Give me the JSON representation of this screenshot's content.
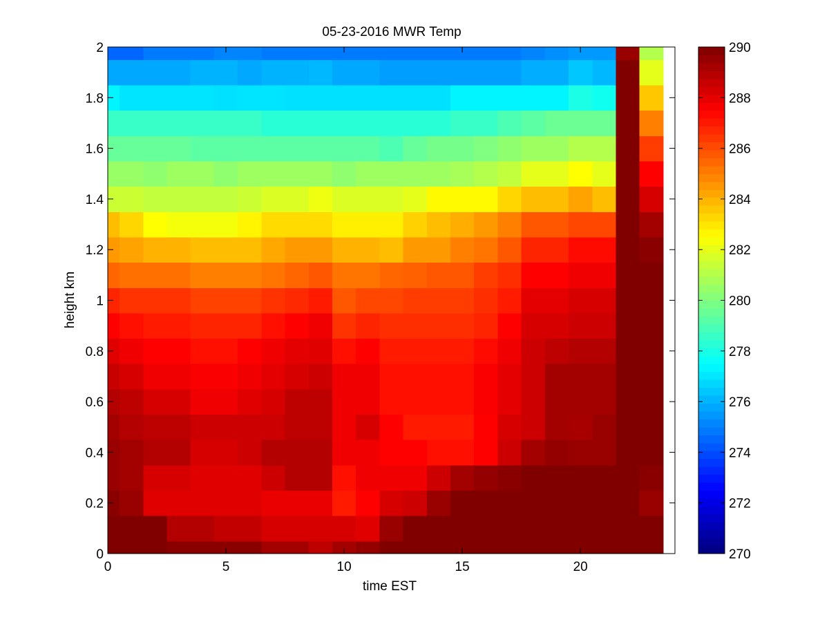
{
  "chart_data": {
    "type": "heatmap",
    "title": "05-23-2016 MWR Temp",
    "xlabel": "time EST",
    "ylabel": "height km",
    "xlim": [
      0,
      24
    ],
    "ylim": [
      0,
      2
    ],
    "x_ticks": [
      0,
      5,
      10,
      15,
      20
    ],
    "y_ticks": [
      0,
      0.2,
      0.4,
      0.6,
      0.8,
      1,
      1.2,
      1.4,
      1.6,
      1.8,
      2
    ],
    "x_tick_labels": [
      "0",
      "5",
      "10",
      "15",
      "20"
    ],
    "y_tick_labels": [
      "0",
      "0.2",
      "0.4",
      "0.6",
      "0.8",
      "1",
      "1.2",
      "1.4",
      "1.6",
      "1.8",
      "2"
    ],
    "colormap": "jet",
    "clim": [
      270,
      290
    ],
    "colorbar_ticks": [
      270,
      272,
      274,
      276,
      278,
      280,
      282,
      284,
      286,
      288,
      290
    ],
    "colorbar_tick_labels": [
      "270",
      "272",
      "274",
      "276",
      "278",
      "280",
      "282",
      "284",
      "286",
      "288",
      "290"
    ],
    "x": [
      0,
      1,
      2,
      3,
      4,
      5,
      6,
      7,
      8,
      9,
      10,
      11,
      12,
      13,
      14,
      15,
      16,
      17,
      18,
      19,
      20,
      21,
      22,
      23
    ],
    "y": [
      0,
      0.1,
      0.2,
      0.3,
      0.4,
      0.5,
      0.6,
      0.7,
      0.8,
      0.9,
      1.0,
      1.1,
      1.2,
      1.3,
      1.4,
      1.5,
      1.6,
      1.7,
      1.8,
      1.9,
      2.0
    ],
    "z": [
      [
        290,
        290,
        290,
        289.8,
        289.8,
        289.8,
        289.8,
        289.3,
        289.3,
        288.8,
        289.3,
        289.6,
        290,
        290,
        290,
        290,
        290,
        290,
        290,
        290,
        290,
        290,
        290,
        290
      ],
      [
        290,
        290,
        290,
        289,
        289,
        288.7,
        288.7,
        288.3,
        288.3,
        288.3,
        288.3,
        288.1,
        289.5,
        290,
        290,
        290,
        290,
        290,
        290,
        290,
        290,
        290,
        290,
        290
      ],
      [
        289.8,
        289.5,
        288.1,
        288.1,
        288.1,
        288.1,
        288.1,
        287.9,
        287.9,
        287.9,
        287,
        287.5,
        288.3,
        288.5,
        289.5,
        290,
        290,
        290,
        290,
        290,
        290,
        290,
        290,
        289.5
      ],
      [
        289.5,
        289.3,
        288.3,
        288.3,
        288.1,
        288.1,
        288.1,
        288.5,
        289,
        289,
        287.2,
        287.8,
        287.8,
        287.8,
        288.5,
        289.3,
        289.6,
        289.8,
        290,
        290,
        290,
        290,
        290,
        289.8
      ],
      [
        289.5,
        289.3,
        289,
        289,
        288.3,
        288.3,
        288.5,
        289,
        289,
        289,
        287.8,
        287.8,
        287.5,
        287.5,
        287.2,
        287.2,
        287.5,
        288.5,
        289.3,
        289.6,
        289.5,
        289.5,
        290,
        290
      ],
      [
        289.3,
        289,
        288.8,
        288.8,
        288.5,
        288.5,
        288.5,
        288.5,
        288.8,
        288.8,
        287.8,
        288.3,
        287.5,
        287,
        287,
        287,
        287.5,
        288.3,
        288.5,
        289.3,
        289.2,
        289.5,
        290,
        290
      ],
      [
        289,
        288.8,
        288.3,
        288.3,
        287.8,
        287.8,
        288.1,
        288.3,
        288.8,
        288.8,
        287.8,
        287.8,
        287.2,
        287.2,
        287.2,
        287.2,
        287.6,
        288,
        288.5,
        289.3,
        289.3,
        289.3,
        290,
        290
      ],
      [
        288.6,
        288.3,
        287.8,
        287.8,
        287.6,
        287.6,
        287.8,
        288,
        288.3,
        288.5,
        287.8,
        287.8,
        287.2,
        287.2,
        287.2,
        287.2,
        287.6,
        288,
        288.5,
        289.3,
        289.3,
        289.3,
        290,
        290
      ],
      [
        288.1,
        287.8,
        287.5,
        287.5,
        287.2,
        287.2,
        287.5,
        287.8,
        288,
        288.1,
        287.2,
        287.5,
        287,
        287,
        287,
        287,
        287.3,
        287.8,
        288.5,
        288.8,
        289,
        289,
        290,
        290
      ],
      [
        287.5,
        287.2,
        287,
        287,
        286.8,
        286.8,
        286.8,
        287.2,
        287.5,
        287.8,
        286.5,
        286.8,
        286.6,
        286.6,
        286.6,
        286.6,
        286.8,
        287.5,
        288.3,
        288.3,
        288.5,
        288.5,
        290,
        290
      ],
      [
        286.8,
        286.5,
        286.5,
        286.5,
        286.2,
        286.2,
        286.2,
        286.5,
        286.7,
        287,
        285.8,
        286.1,
        286.1,
        286.3,
        286.3,
        286.3,
        286.6,
        287,
        288,
        288,
        288.3,
        288.3,
        290,
        290
      ],
      [
        285.5,
        285.3,
        285.3,
        285.3,
        285,
        285,
        285,
        285.2,
        285.5,
        285.8,
        285.2,
        285.2,
        285.5,
        285.6,
        285.8,
        285.8,
        286.3,
        286.6,
        287.5,
        287.5,
        287.8,
        287.8,
        290,
        290
      ],
      [
        284.5,
        284.3,
        284,
        284,
        283.8,
        283.8,
        283.8,
        284.2,
        284.5,
        284.5,
        284,
        284,
        283.8,
        284.5,
        284.5,
        285,
        285.2,
        285.8,
        286.8,
        286.8,
        287.3,
        287.3,
        290,
        289.8
      ],
      [
        283.8,
        283.3,
        282.5,
        282.3,
        282.3,
        282.3,
        282.7,
        283.2,
        283.2,
        283.2,
        282.8,
        282.8,
        282.8,
        283.4,
        283.8,
        284.1,
        284.5,
        285,
        285.8,
        285.8,
        286.1,
        286.1,
        290,
        289.3
      ],
      [
        281.5,
        281.5,
        281.3,
        281.3,
        281.3,
        281.3,
        281.5,
        281.8,
        281.8,
        282.2,
        281.8,
        281.8,
        281.8,
        282,
        282.6,
        282.6,
        282.6,
        283.3,
        283.8,
        283.8,
        284.3,
        283.8,
        290,
        288.3
      ],
      [
        280.5,
        280.5,
        280.3,
        280.6,
        280.6,
        280.3,
        280.6,
        280.6,
        280.6,
        280.6,
        280.3,
        280.6,
        280.6,
        280.6,
        280.6,
        280.8,
        281,
        281.3,
        282,
        282,
        282.5,
        282,
        290,
        287.5
      ],
      [
        279.5,
        279.5,
        279.5,
        279.5,
        279.3,
        279.3,
        279.3,
        279.3,
        279.3,
        279.3,
        279.3,
        279.3,
        279,
        279.5,
        279.8,
        279.8,
        280,
        280.3,
        280.6,
        280.6,
        281,
        281,
        290,
        286.3
      ],
      [
        278.6,
        278.6,
        278.6,
        278.6,
        278.6,
        278.6,
        278.6,
        278.3,
        278.3,
        278.3,
        278.3,
        278.3,
        278.3,
        278.3,
        278.3,
        278.6,
        278.6,
        279,
        279.3,
        279.6,
        279.6,
        279.6,
        290,
        285
      ],
      [
        277.3,
        277,
        277,
        277,
        277,
        276.9,
        277,
        277,
        276.9,
        276.9,
        276.9,
        276.9,
        276.9,
        276.9,
        276.9,
        277.3,
        277.3,
        277.3,
        277.3,
        277.3,
        278,
        277.8,
        290,
        283.6
      ],
      [
        275.8,
        275.8,
        275.8,
        275.8,
        276,
        276,
        275.8,
        276,
        276,
        276.1,
        275.8,
        275.8,
        275.6,
        275.6,
        275.6,
        275.6,
        275.6,
        275.6,
        275.9,
        275.9,
        276.4,
        276.1,
        290,
        282
      ],
      [
        274.5,
        274.5,
        274.9,
        274.9,
        274.9,
        275.1,
        275.1,
        274.9,
        274.9,
        274.9,
        274.9,
        274.9,
        274.9,
        274.9,
        274.9,
        274.9,
        274.9,
        274.9,
        275.1,
        275.3,
        275.5,
        275.5,
        289.5,
        281
      ]
    ]
  }
}
